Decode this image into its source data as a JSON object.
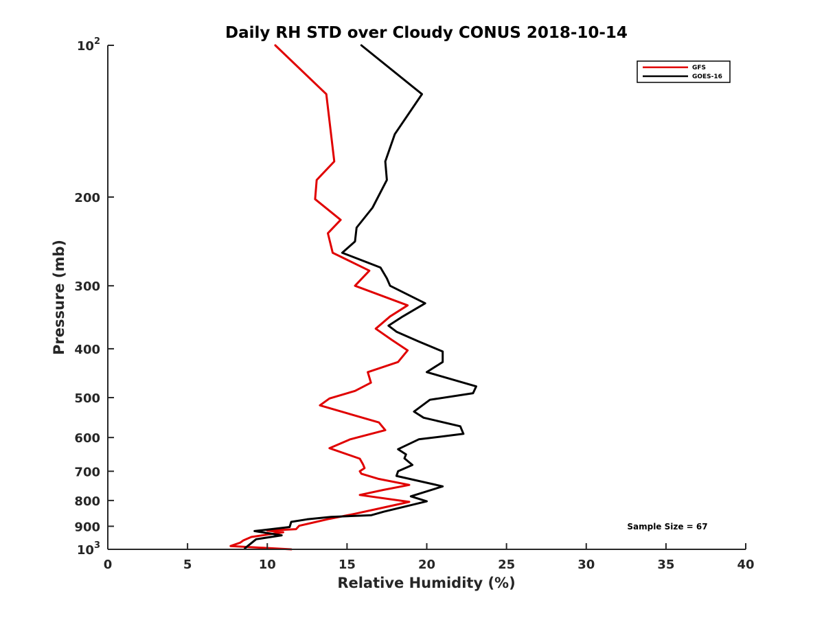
{
  "chart_data": {
    "type": "line",
    "title": "Daily RH STD over Cloudy CONUS 2018-10-14",
    "xlabel": "Relative Humidity (%)",
    "ylabel": "Pressure (mb)",
    "xlim": [
      0,
      40
    ],
    "ylim": [
      100,
      1000
    ],
    "y_scale": "log",
    "y_reversed": true,
    "x_ticks": [
      {
        "value": 0,
        "label": "0"
      },
      {
        "value": 5,
        "label": "5"
      },
      {
        "value": 10,
        "label": "10"
      },
      {
        "value": 15,
        "label": "15"
      },
      {
        "value": 20,
        "label": "20"
      },
      {
        "value": 25,
        "label": "25"
      },
      {
        "value": 30,
        "label": "30"
      },
      {
        "value": 35,
        "label": "35"
      },
      {
        "value": 40,
        "label": "40"
      }
    ],
    "y_ticks": [
      {
        "value": 100,
        "base": "10",
        "exp": "2"
      },
      {
        "value": 200,
        "label": "200"
      },
      {
        "value": 300,
        "label": "300"
      },
      {
        "value": 400,
        "label": "400"
      },
      {
        "value": 500,
        "label": "500"
      },
      {
        "value": 600,
        "label": "600"
      },
      {
        "value": 700,
        "label": "700"
      },
      {
        "value": 800,
        "label": "800"
      },
      {
        "value": 900,
        "label": "900"
      },
      {
        "value": 1000,
        "base": "10",
        "exp": "3"
      }
    ],
    "legend_position": "top-right",
    "annotation": "Sample Size = 67",
    "series": [
      {
        "name": "GFS",
        "color": "#e00000",
        "points": [
          [
            10.5,
            100
          ],
          [
            13.7,
            125
          ],
          [
            14.0,
            150
          ],
          [
            14.2,
            170
          ],
          [
            13.1,
            185
          ],
          [
            13.0,
            202
          ],
          [
            14.6,
            222
          ],
          [
            13.8,
            236
          ],
          [
            14.1,
            258
          ],
          [
            16.4,
            280
          ],
          [
            15.5,
            300
          ],
          [
            18.8,
            328
          ],
          [
            17.7,
            345
          ],
          [
            16.8,
            365
          ],
          [
            17.8,
            384
          ],
          [
            18.8,
            403
          ],
          [
            18.2,
            425
          ],
          [
            16.3,
            445
          ],
          [
            16.5,
            467
          ],
          [
            15.5,
            485
          ],
          [
            13.9,
            502
          ],
          [
            13.3,
            518
          ],
          [
            17.0,
            560
          ],
          [
            17.4,
            580
          ],
          [
            15.2,
            605
          ],
          [
            13.9,
            630
          ],
          [
            15.8,
            661
          ],
          [
            16.0,
            678
          ],
          [
            16.1,
            690
          ],
          [
            15.8,
            700
          ],
          [
            15.9,
            708
          ],
          [
            17.0,
            725
          ],
          [
            18.9,
            745
          ],
          [
            17.3,
            762
          ],
          [
            15.8,
            780
          ],
          [
            18.9,
            805
          ],
          [
            17.0,
            830
          ],
          [
            15.5,
            850
          ],
          [
            13.9,
            870
          ],
          [
            12.0,
            898
          ],
          [
            11.8,
            912
          ],
          [
            10.0,
            918
          ],
          [
            11.0,
            925
          ],
          [
            9.0,
            945
          ],
          [
            8.5,
            960
          ],
          [
            8.3,
            970
          ],
          [
            7.7,
            985
          ],
          [
            11.5,
            1000
          ]
        ]
      },
      {
        "name": "GOES-16",
        "color": "#000000",
        "points": [
          [
            15.9,
            100
          ],
          [
            19.7,
            125
          ],
          [
            18.0,
            150
          ],
          [
            17.4,
            170
          ],
          [
            17.5,
            185
          ],
          [
            16.6,
            210
          ],
          [
            15.6,
            230
          ],
          [
            15.5,
            245
          ],
          [
            14.7,
            258
          ],
          [
            17.1,
            276
          ],
          [
            17.5,
            290
          ],
          [
            17.7,
            300
          ],
          [
            19.9,
            325
          ],
          [
            18.5,
            345
          ],
          [
            17.6,
            360
          ],
          [
            18.1,
            370
          ],
          [
            19.5,
            387
          ],
          [
            21.0,
            405
          ],
          [
            21.0,
            425
          ],
          [
            20.0,
            445
          ],
          [
            23.1,
            475
          ],
          [
            22.9,
            490
          ],
          [
            20.2,
            505
          ],
          [
            19.2,
            533
          ],
          [
            19.8,
            548
          ],
          [
            22.1,
            570
          ],
          [
            22.3,
            590
          ],
          [
            19.5,
            605
          ],
          [
            18.2,
            633
          ],
          [
            18.7,
            648
          ],
          [
            18.6,
            660
          ],
          [
            19.1,
            680
          ],
          [
            18.2,
            700
          ],
          [
            18.1,
            715
          ],
          [
            21.0,
            750
          ],
          [
            19.0,
            785
          ],
          [
            20.0,
            803
          ],
          [
            17.3,
            842
          ],
          [
            16.5,
            856
          ],
          [
            14.0,
            862
          ],
          [
            12.5,
            872
          ],
          [
            11.5,
            882
          ],
          [
            11.4,
            903
          ],
          [
            9.2,
            920
          ],
          [
            10.9,
            938
          ],
          [
            9.3,
            955
          ],
          [
            8.6,
            995
          ]
        ]
      }
    ]
  }
}
